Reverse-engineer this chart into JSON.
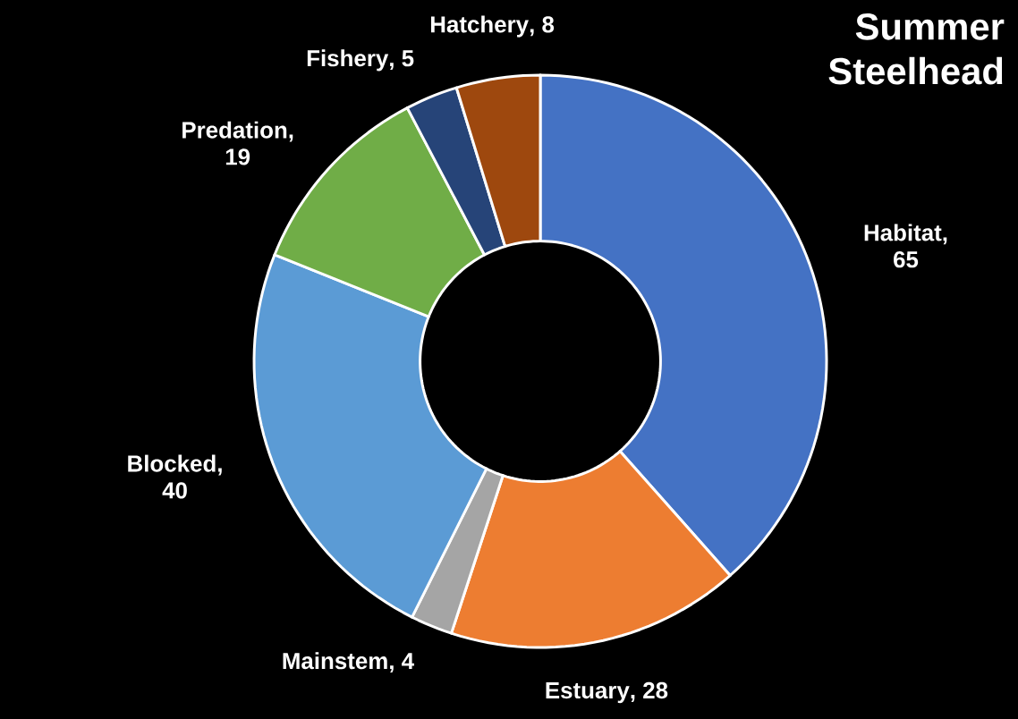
{
  "chart_data": {
    "type": "donut",
    "title": "Summer Steelhead",
    "categories": [
      "Habitat",
      "Estuary",
      "Mainstem",
      "Blocked",
      "Predation",
      "Fishery",
      "Hatchery"
    ],
    "values": [
      65,
      28,
      4,
      40,
      19,
      5,
      8
    ],
    "colors": [
      "#4472c4",
      "#ed7d31",
      "#a5a5a5",
      "#5b9bd5",
      "#70ad47",
      "#264478",
      "#9e480e"
    ],
    "value_labels": [
      ", 65",
      ", 28",
      ", 4",
      ", 40",
      ", 19",
      ", 5",
      ", 8"
    ]
  }
}
